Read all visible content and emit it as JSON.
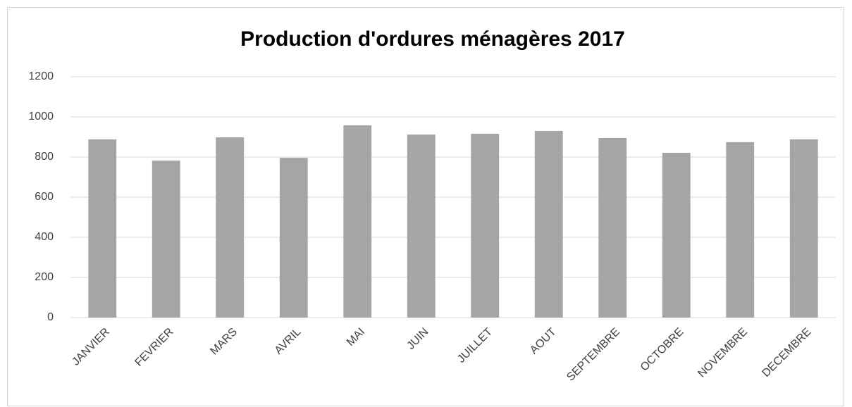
{
  "chart_data": {
    "type": "bar",
    "title": "Production d'ordures ménagères 2017",
    "categories": [
      "JANVIER",
      "FEVRIER",
      "MARS",
      "AVRIL",
      "MAI",
      "JUIN",
      "JUILLET",
      "AOUT",
      "SEPTEMBRE",
      "OCTOBRE",
      "NOVEMBRE",
      "DECEMBRE"
    ],
    "values": [
      888,
      782,
      898,
      796,
      958,
      912,
      916,
      930,
      895,
      821,
      874,
      888
    ],
    "color": "#a5a5a5",
    "ylim": [
      0,
      1200
    ],
    "yticks": [
      0,
      200,
      400,
      600,
      800,
      1000,
      1200
    ],
    "grid": true
  }
}
